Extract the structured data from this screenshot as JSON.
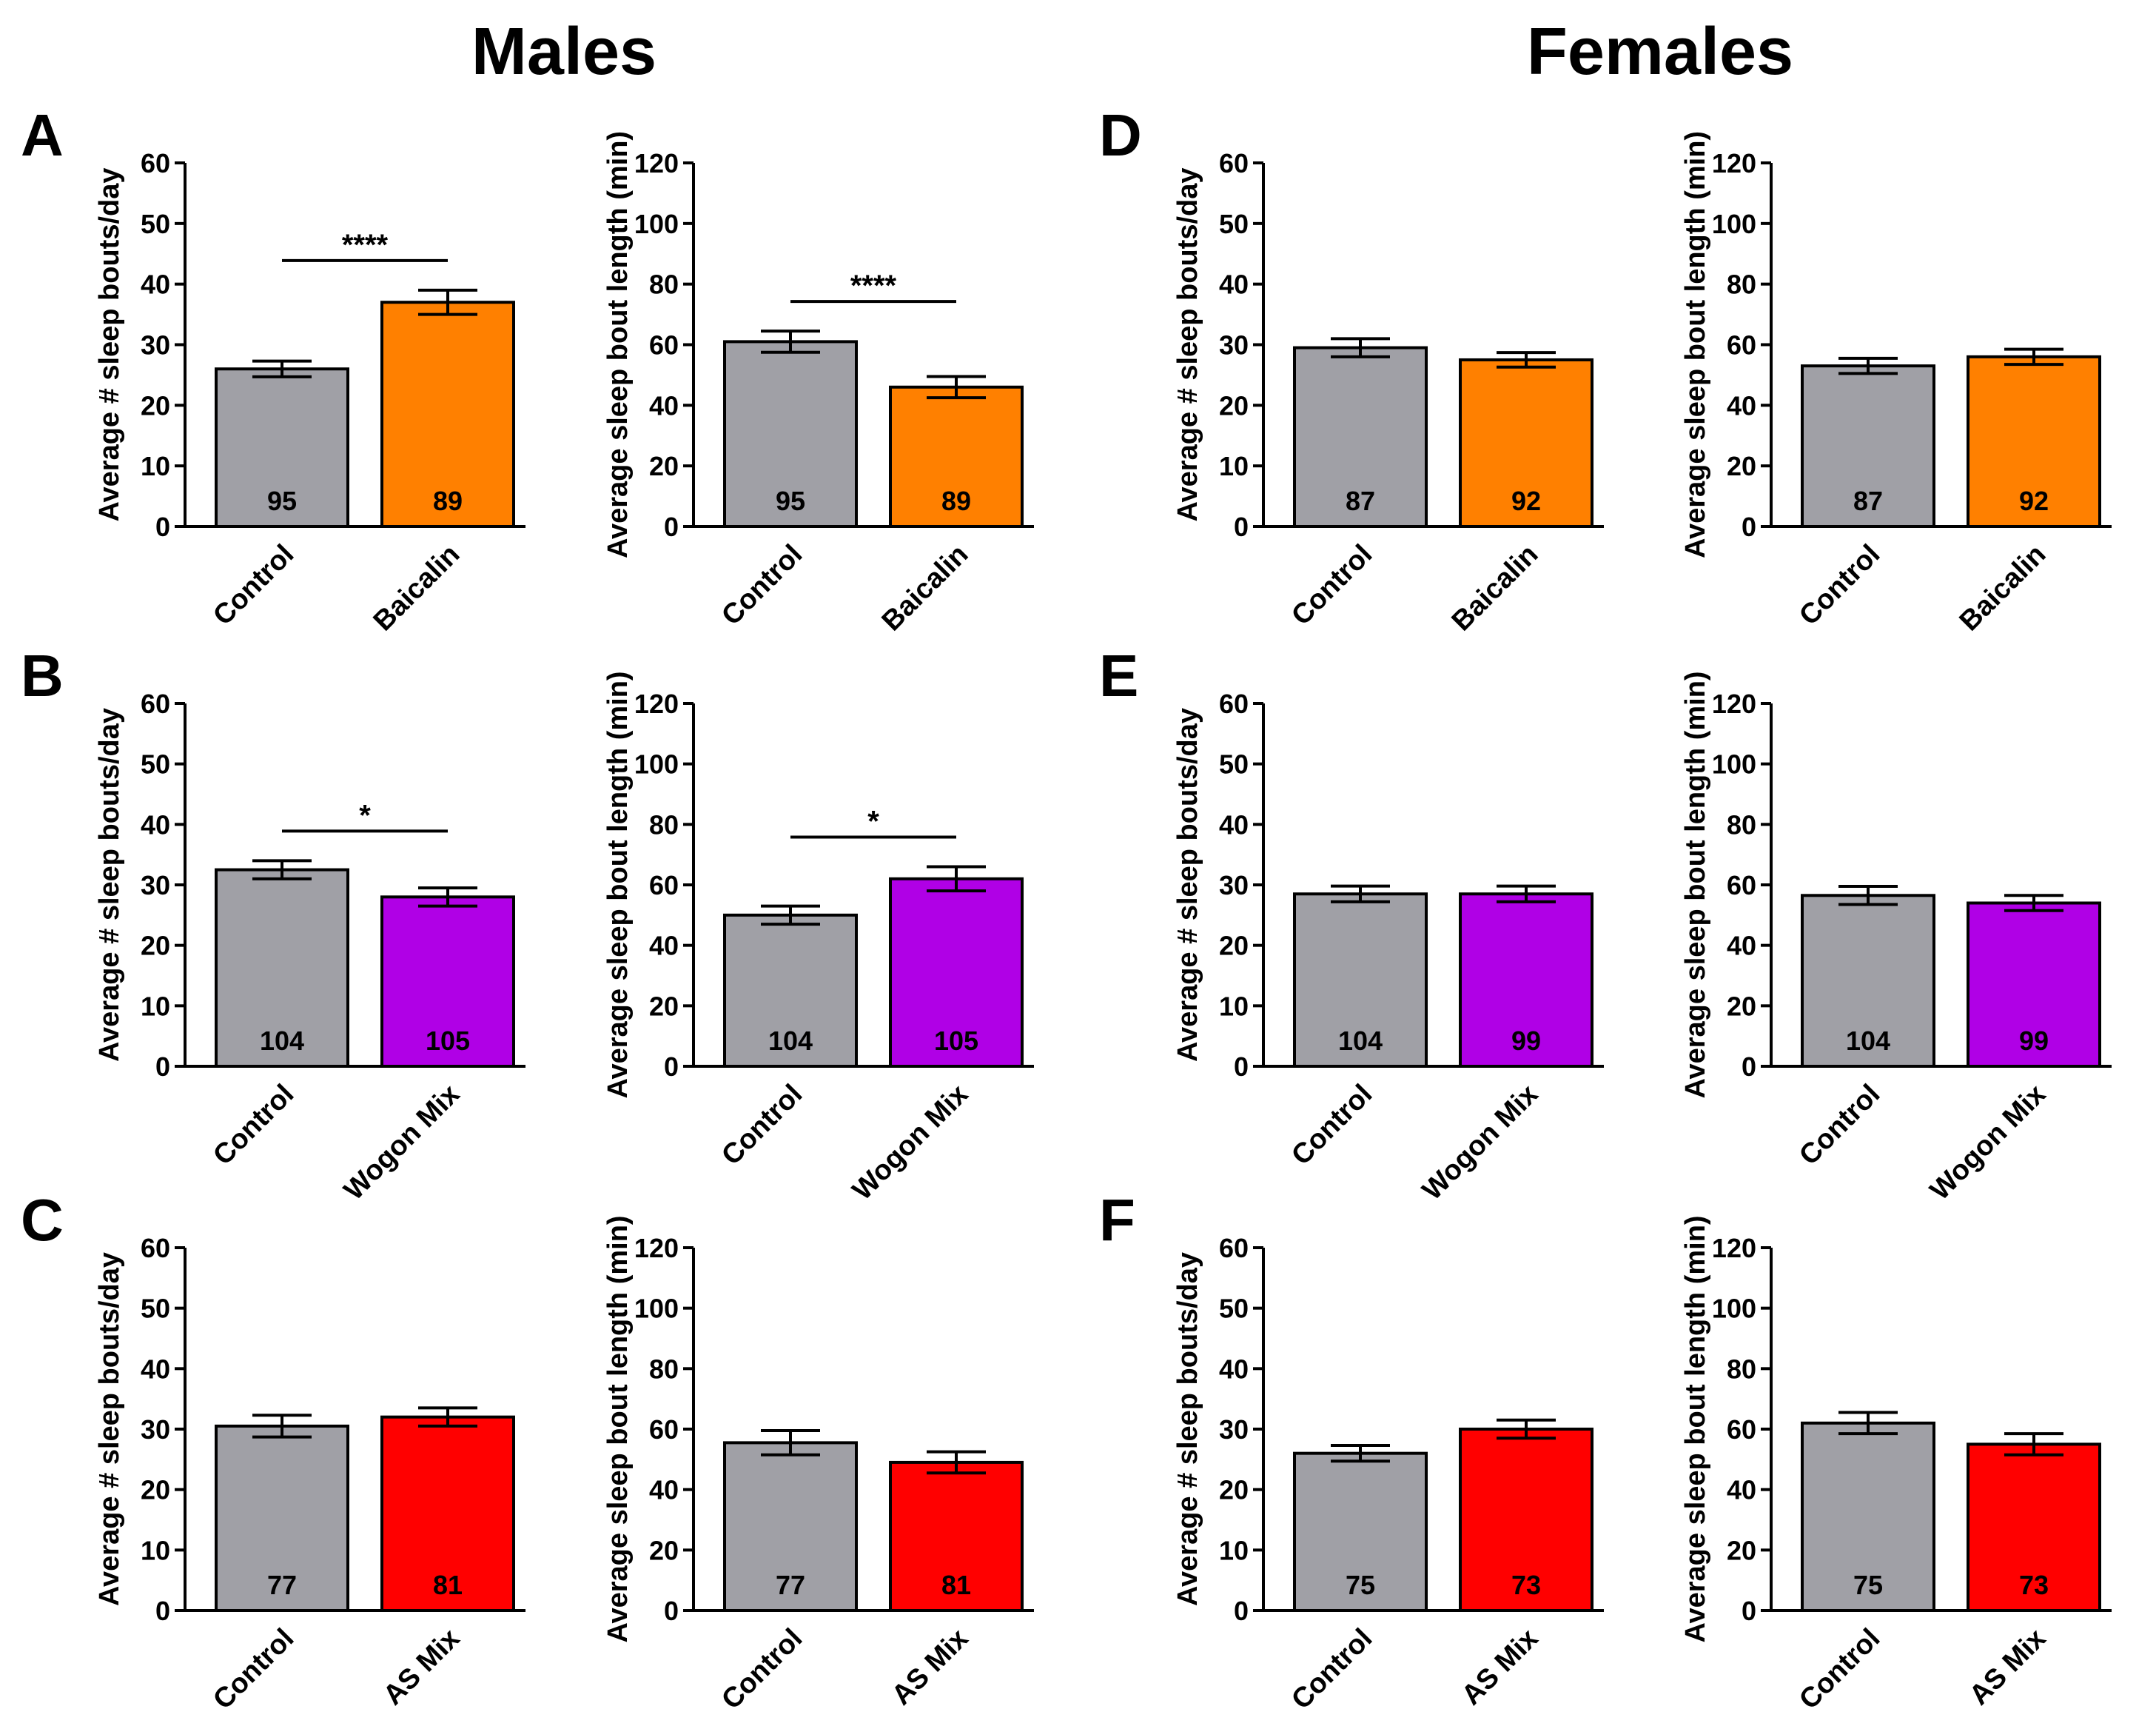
{
  "headers": {
    "males": "Males",
    "females": "Females"
  },
  "colors": {
    "control": "#a0a0a6",
    "baicalin": "#ff8000",
    "wogon": "#b000e6",
    "as_mix": "#ff0000",
    "axis": "#000000"
  },
  "chart_data": [
    {
      "panel": "A",
      "sex": "Males",
      "type": "bar",
      "ylabel": "Average # sleep bouts/day",
      "ylim": [
        0,
        60
      ],
      "ticks": [
        0,
        10,
        20,
        30,
        40,
        50,
        60
      ],
      "categories": [
        "Control",
        "Baicalin"
      ],
      "values": [
        26,
        37
      ],
      "errors": [
        1.3,
        2
      ],
      "n": [
        "95",
        "89"
      ],
      "color_keys": [
        "control",
        "baicalin"
      ],
      "significance": "****"
    },
    {
      "panel": "",
      "sex": "Males",
      "type": "bar",
      "ylabel": "Average sleep bout length (min)",
      "ylim": [
        0,
        120
      ],
      "ticks": [
        0,
        20,
        40,
        60,
        80,
        100,
        120
      ],
      "categories": [
        "Control",
        "Baicalin"
      ],
      "values": [
        61,
        46
      ],
      "errors": [
        3.5,
        3.5
      ],
      "n": [
        "95",
        "89"
      ],
      "color_keys": [
        "control",
        "baicalin"
      ],
      "significance": "****"
    },
    {
      "panel": "D",
      "sex": "Females",
      "type": "bar",
      "ylabel": "Average # sleep bouts/day",
      "ylim": [
        0,
        60
      ],
      "ticks": [
        0,
        10,
        20,
        30,
        40,
        50,
        60
      ],
      "categories": [
        "Control",
        "Baicalin"
      ],
      "values": [
        29.5,
        27.5
      ],
      "errors": [
        1.5,
        1.2
      ],
      "n": [
        "87",
        "92"
      ],
      "color_keys": [
        "control",
        "baicalin"
      ],
      "significance": ""
    },
    {
      "panel": "",
      "sex": "Females",
      "type": "bar",
      "ylabel": "Average sleep bout length (min)",
      "ylim": [
        0,
        120
      ],
      "ticks": [
        0,
        20,
        40,
        60,
        80,
        100,
        120
      ],
      "categories": [
        "Control",
        "Baicalin"
      ],
      "values": [
        53,
        56
      ],
      "errors": [
        2.5,
        2.5
      ],
      "n": [
        "87",
        "92"
      ],
      "color_keys": [
        "control",
        "baicalin"
      ],
      "significance": ""
    },
    {
      "panel": "B",
      "sex": "Males",
      "type": "bar",
      "ylabel": "Average # sleep bouts/day",
      "ylim": [
        0,
        60
      ],
      "ticks": [
        0,
        10,
        20,
        30,
        40,
        50,
        60
      ],
      "categories": [
        "Control",
        "Wogon Mix"
      ],
      "values": [
        32.5,
        28
      ],
      "errors": [
        1.5,
        1.5
      ],
      "n": [
        "104",
        "105"
      ],
      "color_keys": [
        "control",
        "wogon"
      ],
      "significance": "*"
    },
    {
      "panel": "",
      "sex": "Males",
      "type": "bar",
      "ylabel": "Average sleep bout length (min)",
      "ylim": [
        0,
        120
      ],
      "ticks": [
        0,
        20,
        40,
        60,
        80,
        100,
        120
      ],
      "categories": [
        "Control",
        "Wogon Mix"
      ],
      "values": [
        50,
        62
      ],
      "errors": [
        3,
        4
      ],
      "n": [
        "104",
        "105"
      ],
      "color_keys": [
        "control",
        "wogon"
      ],
      "significance": "*"
    },
    {
      "panel": "E",
      "sex": "Females",
      "type": "bar",
      "ylabel": "Average # sleep bouts/day",
      "ylim": [
        0,
        60
      ],
      "ticks": [
        0,
        10,
        20,
        30,
        40,
        50,
        60
      ],
      "categories": [
        "Control",
        "Wogon Mix"
      ],
      "values": [
        28.5,
        28.5
      ],
      "errors": [
        1.3,
        1.3
      ],
      "n": [
        "104",
        "99"
      ],
      "color_keys": [
        "control",
        "wogon"
      ],
      "significance": ""
    },
    {
      "panel": "",
      "sex": "Females",
      "type": "bar",
      "ylabel": "Average sleep bout length (min)",
      "ylim": [
        0,
        120
      ],
      "ticks": [
        0,
        20,
        40,
        60,
        80,
        100,
        120
      ],
      "categories": [
        "Control",
        "Wogon Mix"
      ],
      "values": [
        56.5,
        54
      ],
      "errors": [
        3,
        2.5
      ],
      "n": [
        "104",
        "99"
      ],
      "color_keys": [
        "control",
        "wogon"
      ],
      "significance": ""
    },
    {
      "panel": "C",
      "sex": "Males",
      "type": "bar",
      "ylabel": "Average # sleep bouts/day",
      "ylim": [
        0,
        60
      ],
      "ticks": [
        0,
        10,
        20,
        30,
        40,
        50,
        60
      ],
      "categories": [
        "Control",
        "AS Mix"
      ],
      "values": [
        30.5,
        32
      ],
      "errors": [
        1.8,
        1.5
      ],
      "n": [
        "77",
        "81"
      ],
      "color_keys": [
        "control",
        "as_mix"
      ],
      "significance": ""
    },
    {
      "panel": "",
      "sex": "Males",
      "type": "bar",
      "ylabel": "Average sleep bout length (min)",
      "ylim": [
        0,
        120
      ],
      "ticks": [
        0,
        20,
        40,
        60,
        80,
        100,
        120
      ],
      "categories": [
        "Control",
        "AS Mix"
      ],
      "values": [
        55.5,
        49
      ],
      "errors": [
        4,
        3.5
      ],
      "n": [
        "77",
        "81"
      ],
      "color_keys": [
        "control",
        "as_mix"
      ],
      "significance": ""
    },
    {
      "panel": "F",
      "sex": "Females",
      "type": "bar",
      "ylabel": "Average # sleep bouts/day",
      "ylim": [
        0,
        60
      ],
      "ticks": [
        0,
        10,
        20,
        30,
        40,
        50,
        60
      ],
      "categories": [
        "Control",
        "AS Mix"
      ],
      "values": [
        26,
        30
      ],
      "errors": [
        1.3,
        1.5
      ],
      "n": [
        "75",
        "73"
      ],
      "color_keys": [
        "control",
        "as_mix"
      ],
      "significance": ""
    },
    {
      "panel": "",
      "sex": "Females",
      "type": "bar",
      "ylabel": "Average sleep bout length (min)",
      "ylim": [
        0,
        120
      ],
      "ticks": [
        0,
        20,
        40,
        60,
        80,
        100,
        120
      ],
      "categories": [
        "Control",
        "AS Mix"
      ],
      "values": [
        62,
        55
      ],
      "errors": [
        3.5,
        3.5
      ],
      "n": [
        "75",
        "73"
      ],
      "color_keys": [
        "control",
        "as_mix"
      ],
      "significance": ""
    }
  ]
}
